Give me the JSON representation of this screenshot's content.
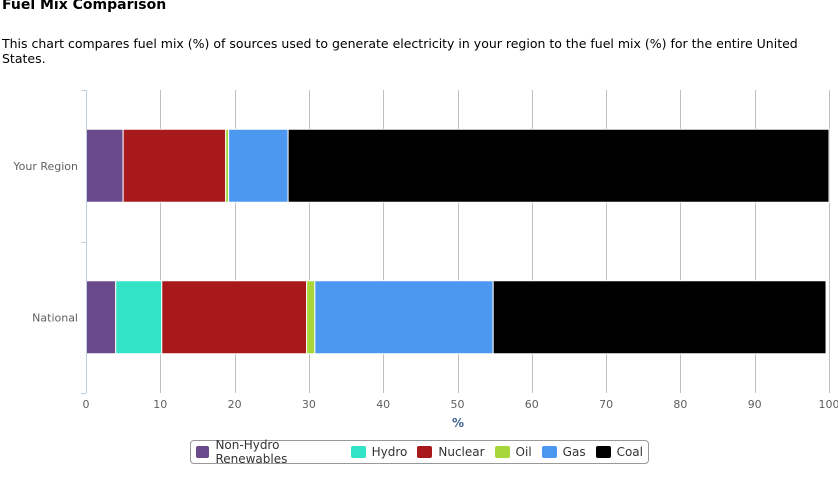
{
  "title": "Fuel Mix Comparison",
  "description": "This chart compares fuel mix (%) of sources used to generate electricity in your region to the fuel mix (%) for the entire United States.",
  "chart_data": {
    "type": "bar",
    "orientation": "horizontal",
    "stacked": true,
    "categories": [
      "Your Region",
      "National"
    ],
    "series": [
      {
        "name": "Non-Hydro Renewables",
        "color": "#6a4a8a",
        "values": [
          5.0,
          4.0
        ]
      },
      {
        "name": "Hydro",
        "color": "#33e3c8",
        "values": [
          0.0,
          6.2
        ]
      },
      {
        "name": "Nuclear",
        "color": "#a8191b",
        "values": [
          13.8,
          19.5
        ]
      },
      {
        "name": "Oil",
        "color": "#a6d63a",
        "values": [
          0.4,
          1.1
        ]
      },
      {
        "name": "Gas",
        "color": "#4c97f0",
        "values": [
          8.0,
          24.0
        ]
      },
      {
        "name": "Coal",
        "color": "#000000",
        "values": [
          72.8,
          44.8
        ]
      }
    ],
    "xlabel": "%",
    "xlim": [
      0,
      100
    ],
    "xticks": [
      "0",
      "10",
      "20",
      "30",
      "40",
      "50",
      "60",
      "70",
      "80",
      "90",
      "100"
    ],
    "grid": true,
    "legend_position": "bottom"
  }
}
